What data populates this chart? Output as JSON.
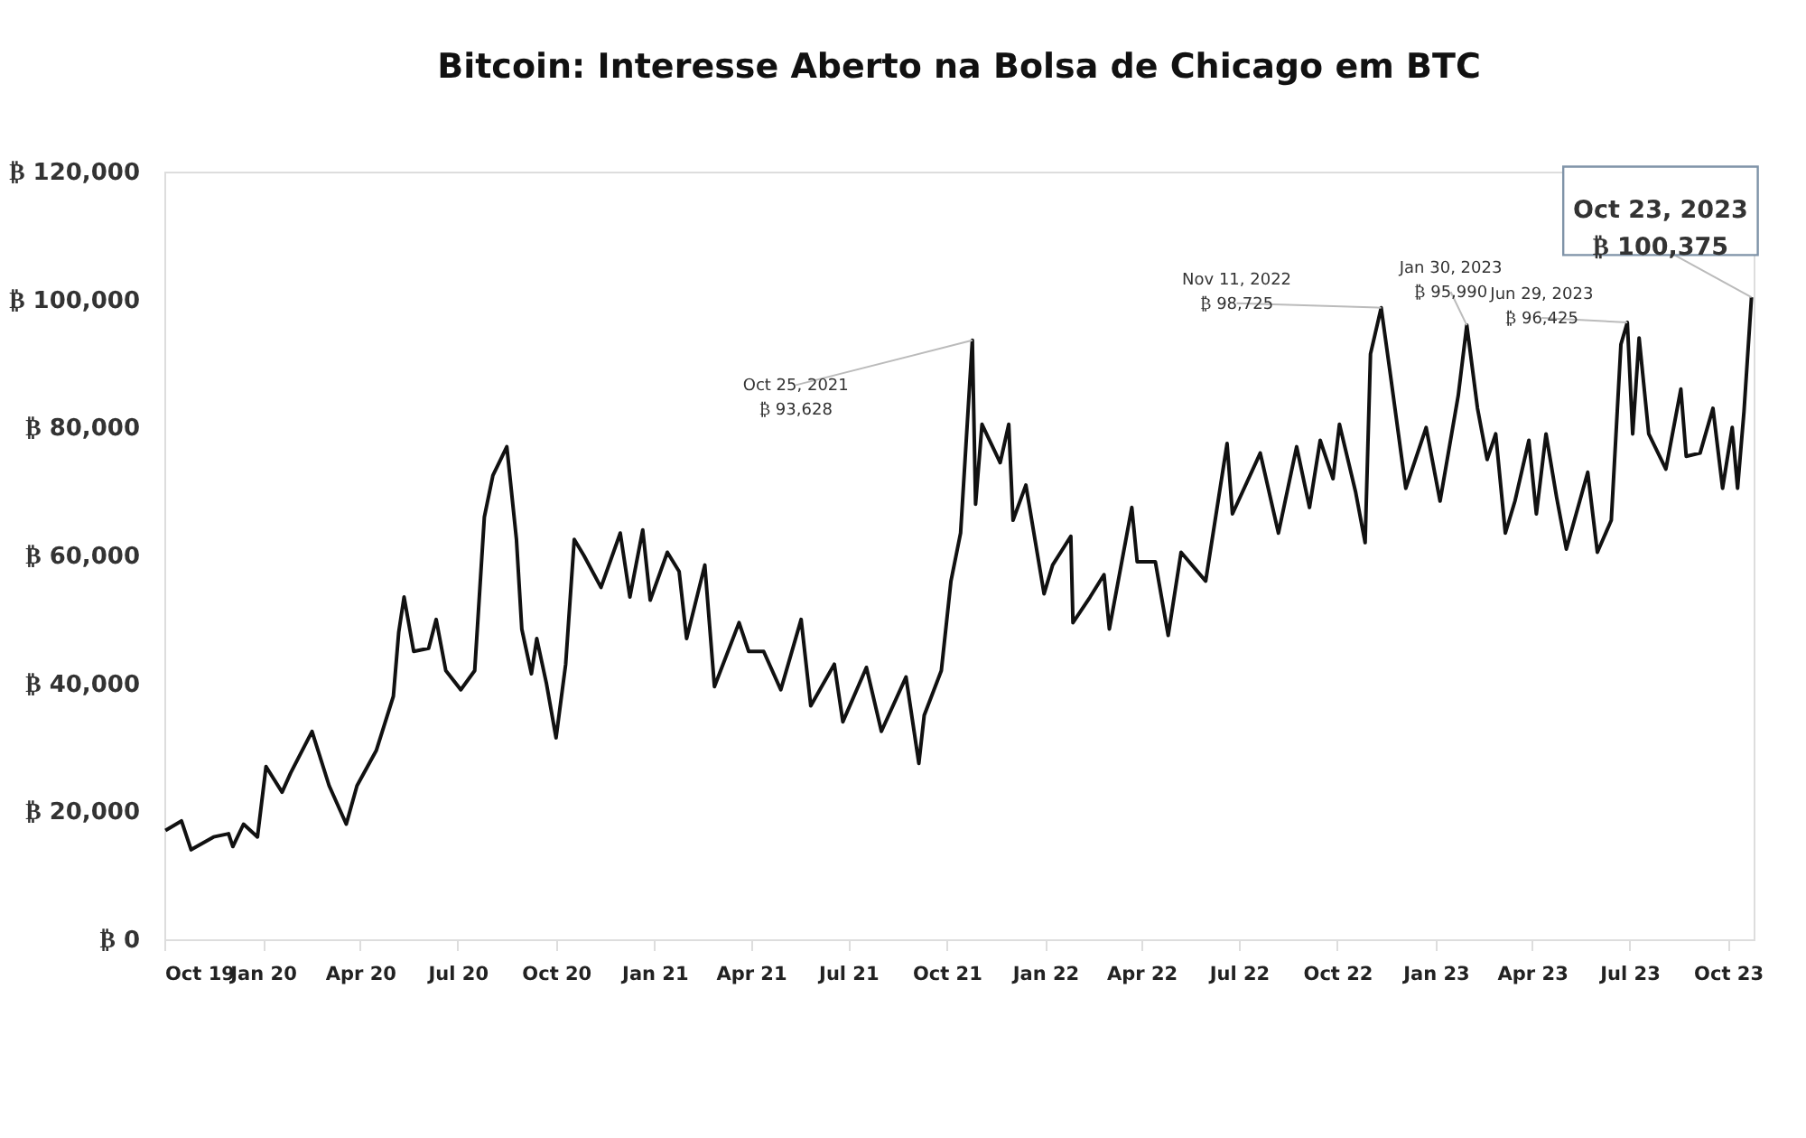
{
  "chart_data": {
    "type": "line",
    "title": "Bitcoin: Interesse Aberto na Bolsa de Chicago em BTC",
    "x": [
      "2019-10-02",
      "2019-10-17",
      "2019-10-26",
      "2019-11-16",
      "2019-11-30",
      "2019-12-04",
      "2019-12-14",
      "2019-12-27",
      "2020-01-04",
      "2020-01-19",
      "2020-01-27",
      "2020-02-16",
      "2020-03-03",
      "2020-03-19",
      "2020-03-29",
      "2020-04-16",
      "2020-05-02",
      "2020-05-07",
      "2020-05-12",
      "2020-05-21",
      "2020-06-04",
      "2020-06-11",
      "2020-06-20",
      "2020-07-04",
      "2020-07-17",
      "2020-07-26",
      "2020-08-03",
      "2020-08-16",
      "2020-08-25",
      "2020-08-30",
      "2020-09-08",
      "2020-09-13",
      "2020-09-22",
      "2020-10-01",
      "2020-10-10",
      "2020-10-18",
      "2020-10-27",
      "2020-11-12",
      "2020-11-30",
      "2020-12-09",
      "2020-12-21",
      "2020-12-28",
      "2021-01-13",
      "2021-01-24",
      "2021-01-31",
      "2021-02-17",
      "2021-02-26",
      "2021-03-21",
      "2021-03-30",
      "2021-04-13",
      "2021-04-29",
      "2021-05-18",
      "2021-05-27",
      "2021-06-18",
      "2021-06-26",
      "2021-07-18",
      "2021-08-01",
      "2021-08-24",
      "2021-09-05",
      "2021-09-10",
      "2021-09-26",
      "2021-10-05",
      "2021-10-14",
      "2021-10-25",
      "2021-10-28",
      "2021-11-03",
      "2021-11-20",
      "2021-11-28",
      "2021-12-02",
      "2021-12-14",
      "2021-12-31",
      "2022-01-08",
      "2022-01-25",
      "2022-01-27",
      "2022-02-12",
      "2022-02-25",
      "2022-03-02",
      "2022-03-23",
      "2022-03-28",
      "2022-04-14",
      "2022-04-26",
      "2022-05-08",
      "2022-05-31",
      "2022-06-20",
      "2022-06-25",
      "2022-07-21",
      "2022-08-07",
      "2022-08-24",
      "2022-09-05",
      "2022-09-15",
      "2022-09-27",
      "2022-10-03",
      "2022-10-18",
      "2022-10-27",
      "2022-11-01",
      "2022-11-11",
      "2022-11-19",
      "2022-12-04",
      "2022-12-23",
      "2023-01-05",
      "2023-01-22",
      "2023-01-30",
      "2023-02-09",
      "2023-02-18",
      "2023-02-26",
      "2023-03-07",
      "2023-03-16",
      "2023-03-29",
      "2023-04-05",
      "2023-04-14",
      "2023-04-24",
      "2023-05-03",
      "2023-05-23",
      "2023-06-01",
      "2023-06-14",
      "2023-06-23",
      "2023-06-29",
      "2023-07-04",
      "2023-07-10",
      "2023-07-19",
      "2023-08-04",
      "2023-08-18",
      "2023-08-23",
      "2023-09-05",
      "2023-09-17",
      "2023-09-26",
      "2023-10-05",
      "2023-10-10",
      "2023-10-16",
      "2023-10-23"
    ],
    "series": [
      {
        "color": "#111111",
        "values": [
          17000,
          18500,
          14000,
          16000,
          16500,
          14500,
          18000,
          16000,
          27000,
          23000,
          26000,
          32500,
          24000,
          18000,
          24000,
          29500,
          38000,
          48000,
          53500,
          45000,
          45500,
          50000,
          42000,
          39000,
          42000,
          66000,
          72500,
          77000,
          62500,
          48500,
          41500,
          47000,
          40000,
          31500,
          43000,
          62500,
          60000,
          55000,
          63500,
          53500,
          64000,
          53000,
          60500,
          57500,
          47000,
          58500,
          39500,
          49500,
          45000,
          45000,
          39000,
          50000,
          36500,
          43000,
          34000,
          42500,
          32500,
          41000,
          27500,
          35000,
          42000,
          56000,
          63500,
          93628,
          68000,
          80500,
          74500,
          80500,
          65500,
          71000,
          54000,
          58500,
          63000,
          49500,
          53500,
          57000,
          48500,
          67500,
          59000,
          59000,
          47500,
          60500,
          56000,
          77500,
          66500,
          76000,
          63500,
          77000,
          67500,
          78000,
          72000,
          80500,
          70000,
          62000,
          91500,
          98725,
          89000,
          70500,
          80000,
          68500,
          85000,
          95990,
          83000,
          75000,
          79000,
          63500,
          68500,
          78000,
          66500,
          79000,
          69000,
          61000,
          73000,
          60500,
          65500,
          93000,
          96425,
          79000,
          94000,
          79000,
          73500,
          86000,
          75500,
          76000,
          83000,
          70500,
          80000,
          70500,
          82500,
          100375
        ]
      }
    ],
    "xlim": [
      "2019-10-01",
      "2023-10-25"
    ],
    "xticks": [
      {
        "value": "2019-10-01",
        "label": "Oct 19"
      },
      {
        "value": "2020-01-01",
        "label": "Jan 20"
      },
      {
        "value": "2020-04-01",
        "label": "Apr 20"
      },
      {
        "value": "2020-07-01",
        "label": "Jul 20"
      },
      {
        "value": "2020-10-01",
        "label": "Oct 20"
      },
      {
        "value": "2021-01-01",
        "label": "Jan 21"
      },
      {
        "value": "2021-04-01",
        "label": "Apr 21"
      },
      {
        "value": "2021-07-01",
        "label": "Jul 21"
      },
      {
        "value": "2021-10-01",
        "label": "Oct 21"
      },
      {
        "value": "2022-01-01",
        "label": "Jan 22"
      },
      {
        "value": "2022-04-01",
        "label": "Apr 22"
      },
      {
        "value": "2022-07-01",
        "label": "Jul 22"
      },
      {
        "value": "2022-10-01",
        "label": "Oct 22"
      },
      {
        "value": "2023-01-01",
        "label": "Jan 23"
      },
      {
        "value": "2023-04-01",
        "label": "Apr 23"
      },
      {
        "value": "2023-07-01",
        "label": "Jul 23"
      },
      {
        "value": "2023-10-01",
        "label": "Oct 23"
      }
    ],
    "ylim": [
      0,
      120000
    ],
    "yticks": [
      {
        "value": 0,
        "label": "₿ 0"
      },
      {
        "value": 20000,
        "label": "₿ 20,000"
      },
      {
        "value": 40000,
        "label": "₿ 40,000"
      },
      {
        "value": 60000,
        "label": "₿ 60,000"
      },
      {
        "value": 80000,
        "label": "₿ 80,000"
      },
      {
        "value": 100000,
        "label": "₿ 100,000"
      },
      {
        "value": 120000,
        "label": "₿ 120,000"
      }
    ],
    "grid": false,
    "annotations": [
      {
        "text": "Oct 25, 2021\n₿ 93,628",
        "x": "2021-10-25",
        "y": 93628
      },
      {
        "text": "Nov 11, 2022\n₿ 98,725",
        "x": "2022-11-11",
        "y": 98725
      },
      {
        "text": "Jan 30, 2023\n₿ 95,990",
        "x": "2023-01-30",
        "y": 95990
      },
      {
        "text": "Jun 29, 2023\n₿ 96,425",
        "x": "2023-06-29",
        "y": 96425
      },
      {
        "text": "Oct 23, 2023\n₿ 100,375",
        "x": "2023-10-23",
        "y": 100375
      }
    ]
  }
}
